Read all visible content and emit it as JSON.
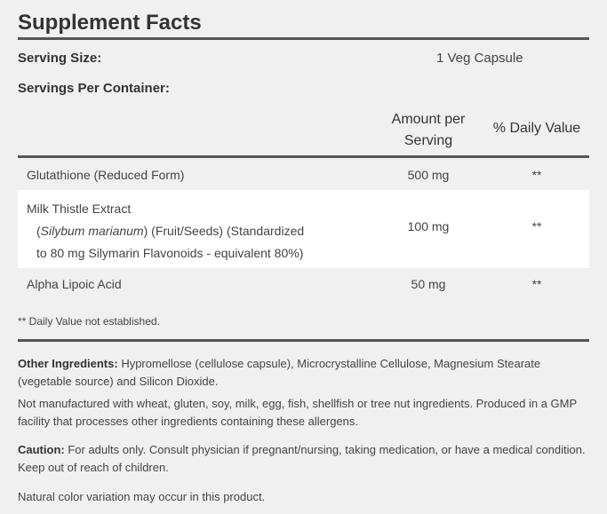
{
  "title": "Supplement Facts",
  "serving_size": {
    "label": "Serving Size:",
    "value": "1 Veg Capsule"
  },
  "servings_per_container": {
    "label": "Servings Per Container:"
  },
  "headers": {
    "amount_line1": "Amount per",
    "amount_line2": "Serving",
    "daily_value": "% Daily Value"
  },
  "rows": [
    {
      "name": "Glutathione (Reduced Form)",
      "amount": "500 mg",
      "dv": "**"
    },
    {
      "name": "Milk Thistle Extract",
      "latin": "Silybum marianum",
      "detail_rest": " (Fruit/Seeds) (Standardized",
      "detail_line2": "to 80 mg Silymarin Flavonoids - equivalent 80%)",
      "amount": "100 mg",
      "dv": "**"
    },
    {
      "name": "Alpha Lipoic Acid",
      "amount": "50 mg",
      "dv": "**"
    }
  ],
  "footnote": "** Daily Value not established.",
  "other_ingredients": {
    "label": "Other Ingredients:",
    "text": "Hypromellose (cellulose capsule), Microcrystalline Cellulose, Magnesium Stearate (vegetable source) and Silicon Dioxide."
  },
  "not_manufactured": "Not manufactured with wheat, gluten, soy, milk, egg, fish, shellfish or tree nut ingredients. Produced in a GMP facility that processes other ingredients containing these allergens.",
  "caution": {
    "label": "Caution:",
    "text": "For adults only. Consult physician if pregnant/nursing, taking medication, or have a medical condition. Keep out of reach of children."
  },
  "natural_color": "Natural color variation may occur in this product."
}
